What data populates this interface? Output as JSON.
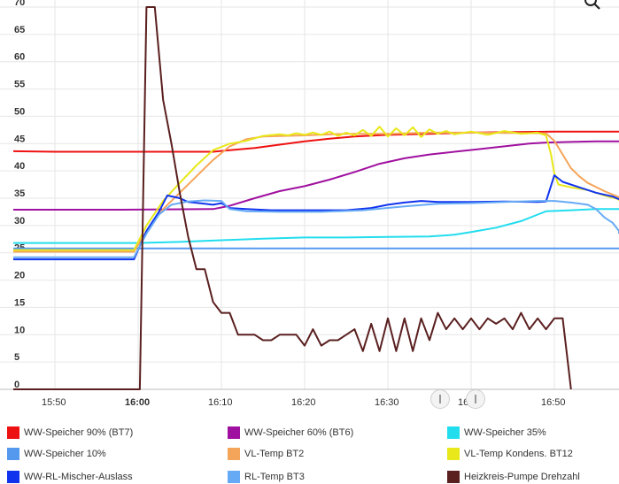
{
  "chart_data": {
    "type": "line",
    "title": "",
    "xlabel": "",
    "ylabel": "",
    "x_range_minutes": [
      15.0,
      74.0
    ],
    "ylim": [
      0,
      70
    ],
    "grid": true,
    "legend_position": "bottom",
    "y_ticks": [
      "0",
      "5",
      "10",
      "15",
      "20",
      "25",
      "30",
      "35",
      "40",
      "45",
      "50",
      "55",
      "60",
      "65",
      "70"
    ],
    "x_ticks": [
      {
        "label": "15:50",
        "minute": 20,
        "bold": false
      },
      {
        "label": "16:00",
        "minute": 30,
        "bold": true
      },
      {
        "label": "16:10",
        "minute": 40,
        "bold": false
      },
      {
        "label": "16:20",
        "minute": 50,
        "bold": false
      },
      {
        "label": "16:30",
        "minute": 60,
        "bold": false
      },
      {
        "label": "16:40",
        "minute": 70,
        "bold": false
      },
      {
        "label": "16:50",
        "minute": 80,
        "bold": false
      }
    ],
    "series": [
      {
        "name": "WW-Speicher 90% (BT7)",
        "color": "#ee1111",
        "points": [
          [
            15,
            43.6
          ],
          [
            20,
            43.5
          ],
          [
            30,
            43.5
          ],
          [
            39,
            43.5
          ],
          [
            41,
            43.8
          ],
          [
            44,
            44.2
          ],
          [
            47,
            44.8
          ],
          [
            50,
            45.4
          ],
          [
            53,
            45.9
          ],
          [
            56,
            46.3
          ],
          [
            60,
            46.6
          ],
          [
            65,
            46.8
          ],
          [
            70,
            47.0
          ],
          [
            75,
            47.1
          ],
          [
            80,
            47.2
          ],
          [
            85,
            47.2
          ],
          [
            89,
            47.2
          ]
        ]
      },
      {
        "name": "WW-Speicher 60% (BT6)",
        "color": "#a010a0",
        "points": [
          [
            15,
            32.9
          ],
          [
            28,
            32.9
          ],
          [
            39,
            33.0
          ],
          [
            41,
            33.6
          ],
          [
            44,
            35.0
          ],
          [
            47,
            36.3
          ],
          [
            50,
            37.2
          ],
          [
            53,
            38.4
          ],
          [
            56,
            39.8
          ],
          [
            59,
            41.3
          ],
          [
            62,
            42.3
          ],
          [
            65,
            43.0
          ],
          [
            68,
            43.5
          ],
          [
            71,
            44.0
          ],
          [
            74,
            44.5
          ],
          [
            77,
            45.0
          ],
          [
            79,
            45.2
          ],
          [
            82,
            45.3
          ],
          [
            85,
            45.4
          ],
          [
            89,
            45.4
          ]
        ]
      },
      {
        "name": "WW-Speicher 35%",
        "color": "#22ddee",
        "points": [
          [
            15,
            26.8
          ],
          [
            30,
            26.8
          ],
          [
            35,
            27.0
          ],
          [
            40,
            27.3
          ],
          [
            45,
            27.6
          ],
          [
            50,
            27.8
          ],
          [
            55,
            27.8
          ],
          [
            60,
            27.9
          ],
          [
            65,
            28.0
          ],
          [
            68,
            28.3
          ],
          [
            70,
            28.8
          ],
          [
            73,
            29.6
          ],
          [
            76,
            30.8
          ],
          [
            78,
            32.0
          ],
          [
            79,
            32.6
          ],
          [
            82,
            32.8
          ],
          [
            85,
            33.0
          ],
          [
            89,
            33.0
          ]
        ]
      },
      {
        "name": "WW-Speicher 10%",
        "color": "#5599ee",
        "points": [
          [
            15,
            25.8
          ],
          [
            89,
            25.8
          ]
        ]
      },
      {
        "name": "VL-Temp BT2",
        "color": "#f5a55a",
        "points": [
          [
            15,
            25.2
          ],
          [
            29.5,
            25.2
          ],
          [
            31,
            29
          ],
          [
            33,
            33
          ],
          [
            35,
            36
          ],
          [
            37,
            39
          ],
          [
            39,
            42
          ],
          [
            41,
            44.5
          ],
          [
            43,
            45.8
          ],
          [
            45,
            46.3
          ],
          [
            50,
            46.5
          ],
          [
            55,
            46.8
          ],
          [
            60,
            46.8
          ],
          [
            65,
            47.0
          ],
          [
            70,
            47.0
          ],
          [
            79,
            46.9
          ],
          [
            80,
            45.5
          ],
          [
            81,
            43
          ],
          [
            82,
            40.5
          ],
          [
            83,
            39
          ],
          [
            84,
            37.8
          ],
          [
            86,
            36.3
          ],
          [
            88,
            35.2
          ],
          [
            89,
            34.8
          ]
        ]
      },
      {
        "name": "VL-Temp Kondens. BT12",
        "color": "#e8e81a",
        "points": [
          [
            15,
            25.5
          ],
          [
            29.5,
            25.5
          ],
          [
            31,
            30
          ],
          [
            33,
            34.5
          ],
          [
            35,
            37.8
          ],
          [
            37,
            41
          ],
          [
            39,
            43.8
          ],
          [
            41,
            45
          ],
          [
            43,
            45.5
          ],
          [
            45,
            46.4
          ],
          [
            47,
            46.7
          ],
          [
            48,
            46.5
          ],
          [
            49,
            46.9
          ],
          [
            50,
            46.6
          ],
          [
            51,
            47.0
          ],
          [
            52,
            46.6
          ],
          [
            53,
            47.2
          ],
          [
            54,
            46.4
          ],
          [
            55,
            47.0
          ],
          [
            56,
            46.5
          ],
          [
            57,
            47.5
          ],
          [
            58,
            46.4
          ],
          [
            59,
            48.1
          ],
          [
            60,
            46.3
          ],
          [
            61,
            47.8
          ],
          [
            62,
            46.5
          ],
          [
            63,
            48.0
          ],
          [
            64,
            46.2
          ],
          [
            65,
            47.6
          ],
          [
            66,
            46.8
          ],
          [
            67,
            47.3
          ],
          [
            68,
            46.7
          ],
          [
            70,
            47.2
          ],
          [
            72,
            46.6
          ],
          [
            74,
            47.3
          ],
          [
            76,
            46.8
          ],
          [
            78,
            47.0
          ],
          [
            79,
            46.5
          ],
          [
            79.6,
            43
          ],
          [
            80,
            39.5
          ],
          [
            80.5,
            37.5
          ],
          [
            82,
            37.0
          ],
          [
            84,
            36.5
          ],
          [
            86,
            35.5
          ],
          [
            88,
            34.8
          ],
          [
            89,
            34.5
          ]
        ]
      },
      {
        "name": "WW-RL-Mischer-Auslass",
        "color": "#1133ee",
        "points": [
          [
            15,
            23.8
          ],
          [
            29.5,
            23.8
          ],
          [
            31,
            29
          ],
          [
            32.5,
            32.5
          ],
          [
            33.5,
            35.5
          ],
          [
            35,
            35.0
          ],
          [
            36,
            34.3
          ],
          [
            38,
            34.0
          ],
          [
            39,
            33.8
          ],
          [
            40,
            34.1
          ],
          [
            41,
            33.2
          ],
          [
            43,
            33.0
          ],
          [
            46,
            32.8
          ],
          [
            50,
            32.8
          ],
          [
            55,
            32.8
          ],
          [
            58,
            33.2
          ],
          [
            60,
            33.8
          ],
          [
            62,
            34.2
          ],
          [
            64,
            34.5
          ],
          [
            66,
            34.3
          ],
          [
            70,
            34.3
          ],
          [
            74,
            34.4
          ],
          [
            78,
            34.3
          ],
          [
            79,
            34.4
          ],
          [
            80,
            39.2
          ],
          [
            81,
            38.0
          ],
          [
            83,
            37.0
          ],
          [
            85,
            36.0
          ],
          [
            87,
            35.3
          ],
          [
            89,
            34.8
          ]
        ]
      },
      {
        "name": "RL-Temp BT3",
        "color": "#66aaf5",
        "points": [
          [
            15,
            24.2
          ],
          [
            29.5,
            24.2
          ],
          [
            31,
            28.5
          ],
          [
            32.5,
            32
          ],
          [
            34,
            33.8
          ],
          [
            36,
            34.4
          ],
          [
            38,
            34.6
          ],
          [
            40,
            34.5
          ],
          [
            41,
            33.0
          ],
          [
            43,
            32.6
          ],
          [
            47,
            32.5
          ],
          [
            52,
            32.5
          ],
          [
            57,
            32.8
          ],
          [
            62,
            33.5
          ],
          [
            66,
            34.0
          ],
          [
            70,
            34.1
          ],
          [
            74,
            34.3
          ],
          [
            78,
            34.5
          ],
          [
            80,
            34.5
          ],
          [
            82,
            34.2
          ],
          [
            84,
            33.8
          ],
          [
            85,
            33.0
          ],
          [
            86,
            31.5
          ],
          [
            87,
            30.5
          ],
          [
            88,
            29.0
          ],
          [
            89,
            28.5
          ]
        ]
      },
      {
        "name": "Heizkreis-Pumpe Drehzahl",
        "color": "#5a1f1f",
        "points": [
          [
            15,
            0
          ],
          [
            30,
            0
          ],
          [
            30.2,
            0
          ],
          [
            31,
            70
          ],
          [
            32,
            70
          ],
          [
            33,
            53
          ],
          [
            34,
            45
          ],
          [
            35,
            36
          ],
          [
            36,
            28
          ],
          [
            37,
            22
          ],
          [
            38,
            22
          ],
          [
            39,
            16
          ],
          [
            40,
            14
          ],
          [
            41,
            14
          ],
          [
            42,
            10
          ],
          [
            44,
            10
          ],
          [
            45,
            9
          ],
          [
            46,
            9
          ],
          [
            47,
            10
          ],
          [
            49,
            10
          ],
          [
            50,
            8
          ],
          [
            51,
            11
          ],
          [
            52,
            8
          ],
          [
            53,
            9
          ],
          [
            54,
            9
          ],
          [
            55,
            10
          ],
          [
            56,
            11
          ],
          [
            57,
            7
          ],
          [
            58,
            12
          ],
          [
            59,
            7
          ],
          [
            60,
            13
          ],
          [
            61,
            7
          ],
          [
            62,
            13
          ],
          [
            63,
            7
          ],
          [
            64,
            13
          ],
          [
            65,
            9
          ],
          [
            66,
            14
          ],
          [
            67,
            11
          ],
          [
            68,
            13
          ],
          [
            69,
            11
          ],
          [
            70,
            13
          ],
          [
            71,
            11
          ],
          [
            72,
            13
          ],
          [
            73,
            12
          ],
          [
            74,
            13
          ],
          [
            75,
            11
          ],
          [
            76,
            14
          ],
          [
            77,
            11
          ],
          [
            78,
            13
          ],
          [
            79,
            11
          ],
          [
            80,
            13
          ],
          [
            81,
            13
          ],
          [
            82,
            0
          ]
        ]
      }
    ]
  },
  "legend": [
    {
      "label": "WW-Speicher 90% (BT7)",
      "color": "#ee1111"
    },
    {
      "label": "WW-Speicher 60% (BT6)",
      "color": "#a010a0"
    },
    {
      "label": "WW-Speicher 35%",
      "color": "#22ddee"
    },
    {
      "label": "WW-Speicher 10%",
      "color": "#5599ee"
    },
    {
      "label": "VL-Temp BT2",
      "color": "#f5a55a"
    },
    {
      "label": "VL-Temp Kondens. BT12",
      "color": "#e8e81a"
    },
    {
      "label": "WW-RL-Mischer-Auslass",
      "color": "#1133ee"
    },
    {
      "label": "RL-Temp BT3",
      "color": "#66aaf5"
    },
    {
      "label": "Heizkreis-Pumpe Drehzahl",
      "color": "#5a1f1f"
    }
  ],
  "icons": {
    "zoom": "magnifier-icon",
    "scroll_left": "range-handle-icon",
    "scroll_right": "range-handle-icon"
  }
}
